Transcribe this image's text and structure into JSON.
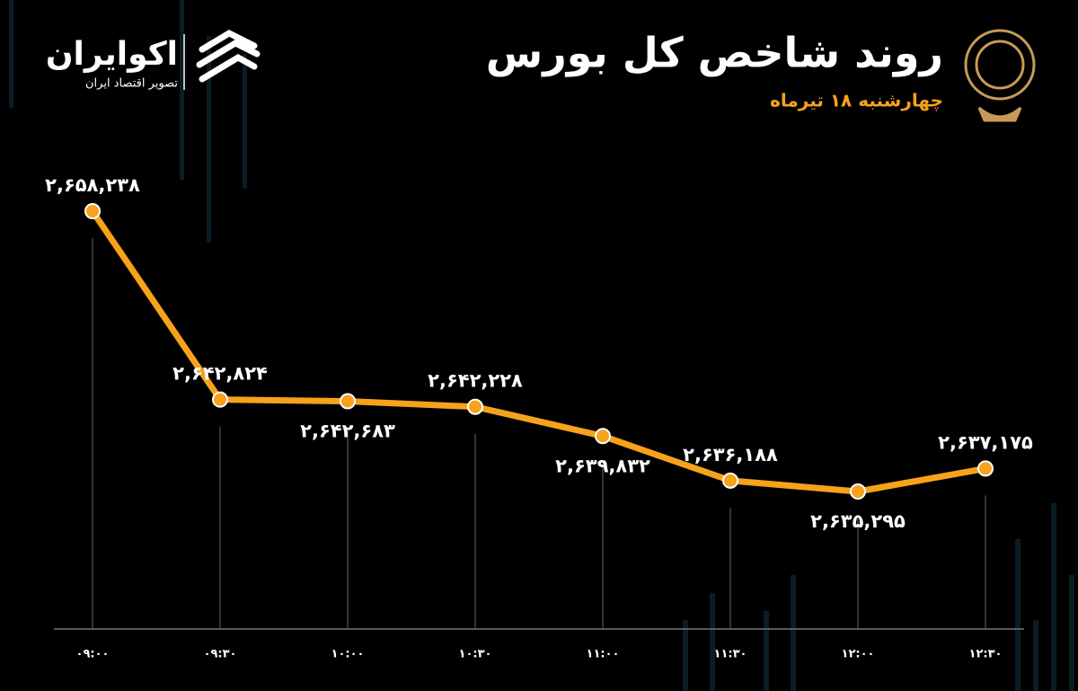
{
  "chart_data": {
    "type": "line",
    "title": "روند شاخص کل بورس",
    "subtitle": "چهارشنبه ۱۸ تیرماه",
    "brand": {
      "name": "اکوایران",
      "tagline": "تصویر اقتصاد ایران"
    },
    "categories": [
      "۰۹:۰۰",
      "۰۹:۳۰",
      "۱۰:۰۰",
      "۱۰:۳۰",
      "۱۱:۰۰",
      "۱۱:۳۰",
      "۱۲:۰۰",
      "۱۲:۳۰"
    ],
    "values": [
      2658238,
      2642824,
      2642683,
      2642228,
      2639832,
      2636188,
      2635295,
      2637175
    ],
    "value_labels": [
      "۲,۶۵۸,۲۳۸",
      "۲,۶۴۲,۸۲۴",
      "۲,۶۴۲,۶۸۳",
      "۲,۶۴۲,۲۲۸",
      "۲,۶۳۹,۸۳۲",
      "۲,۶۳۶,۱۸۸",
      "۲,۶۳۵,۲۹۵",
      "۲,۶۳۷,۱۷۵"
    ],
    "color": "#f7a21b"
  }
}
